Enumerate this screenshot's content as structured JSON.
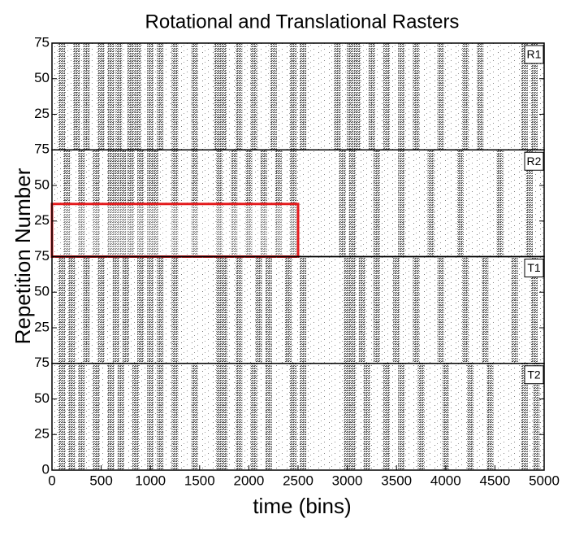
{
  "chart_data": {
    "type": "raster",
    "title": "Rotational and Translational Rasters",
    "xlabel": "time (bins)",
    "ylabel": "Repetition Number",
    "xlim": [
      0,
      5000
    ],
    "xticks": [
      0,
      500,
      1000,
      1500,
      2000,
      2500,
      3000,
      3500,
      4000,
      4500,
      5000
    ],
    "color": "#5a5a5a",
    "panels": [
      {
        "label": "R1",
        "ylim": [
          0,
          75
        ],
        "yticks": [
          25,
          50,
          75
        ],
        "x": [
          100,
          250,
          350,
          500,
          600,
          680,
          800,
          870,
          1000,
          1100,
          1250,
          1450,
          1680,
          1740,
          1900,
          2050,
          2250,
          2450,
          2550,
          2900,
          3030,
          3100,
          3250,
          3400,
          3550,
          3700,
          3950,
          4200,
          4350,
          4800,
          4900
        ]
      },
      {
        "label": "R2",
        "ylim": [
          0,
          75
        ],
        "yticks": [
          25,
          50,
          75
        ],
        "x": [
          150,
          300,
          450,
          600,
          650,
          720,
          800,
          900,
          1000,
          1050,
          1250,
          1450,
          1700,
          1850,
          2000,
          2150,
          2300,
          2450,
          2950,
          3050,
          3300,
          3550,
          3850,
          4150,
          4550,
          4850
        ],
        "highlight": {
          "xlim": [
            0,
            2500
          ],
          "ylim": [
            0,
            37
          ],
          "color": "#e41a1c"
        }
      },
      {
        "label": "T1",
        "ylim": [
          0,
          75
        ],
        "yticks": [
          25,
          50,
          75
        ],
        "x": [
          100,
          200,
          350,
          500,
          650,
          750,
          900,
          1000,
          1100,
          1250,
          1700,
          1750,
          1900,
          2100,
          2200,
          2400,
          2550,
          3000,
          3050,
          3150,
          3300,
          3500,
          3700,
          3950,
          4200,
          4400,
          4700,
          4900
        ]
      },
      {
        "label": "T2",
        "ylim": [
          0,
          75
        ],
        "yticks": [
          0,
          25,
          50,
          75
        ],
        "x": [
          100,
          200,
          300,
          450,
          600,
          700,
          850,
          1000,
          1100,
          1250,
          1450,
          1700,
          1750,
          1900,
          2050,
          2200,
          2450,
          2550,
          3000,
          3050,
          3200,
          3400,
          3550,
          3750,
          4000,
          4250,
          4450,
          4800,
          4920
        ]
      }
    ]
  }
}
